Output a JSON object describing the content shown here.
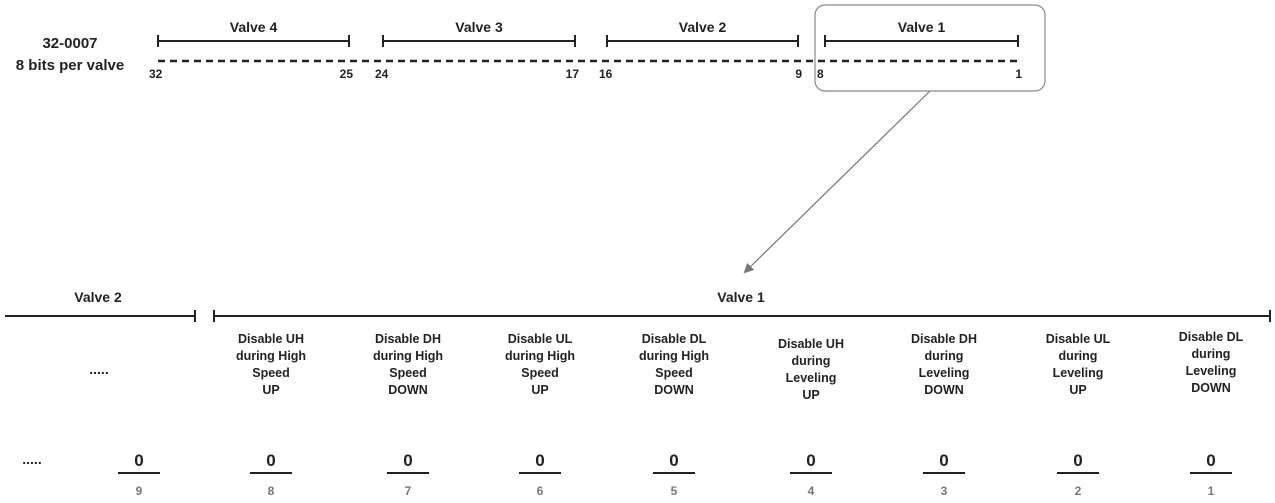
{
  "header": {
    "register_id": "32-0007",
    "bits_note": "8 bits per valve"
  },
  "top_valves": [
    {
      "label": "Valve 4",
      "start_bit": "32",
      "end_bit": "25"
    },
    {
      "label": "Valve 3",
      "start_bit": "24",
      "end_bit": "17"
    },
    {
      "label": "Valve 2",
      "start_bit": "16",
      "end_bit": "9"
    },
    {
      "label": "Valve 1",
      "start_bit": "8",
      "end_bit": "1"
    }
  ],
  "detail": {
    "valve_left_label": "Valve 2",
    "valve_right_label": "Valve 1",
    "ellipsis_desc": ".....",
    "ellipsis_value": ".....",
    "bit9": {
      "value": "0",
      "bit": "9"
    },
    "bits": [
      {
        "lines": [
          "Disable UH",
          "during High",
          "Speed",
          "UP"
        ],
        "value": "0",
        "bit": "8"
      },
      {
        "lines": [
          "Disable DH",
          "during High",
          "Speed",
          "DOWN"
        ],
        "value": "0",
        "bit": "7"
      },
      {
        "lines": [
          "Disable UL",
          "during High",
          "Speed",
          "UP"
        ],
        "value": "0",
        "bit": "6"
      },
      {
        "lines": [
          "Disable DL",
          "during High",
          "Speed",
          "DOWN"
        ],
        "value": "0",
        "bit": "5"
      },
      {
        "lines": [
          "Disable UH",
          "during",
          "Leveling",
          "UP"
        ],
        "value": "0",
        "bit": "4"
      },
      {
        "lines": [
          "Disable DH",
          "during",
          "Leveling",
          "DOWN"
        ],
        "value": "0",
        "bit": "3"
      },
      {
        "lines": [
          "Disable UL",
          "during",
          "Leveling",
          "UP"
        ],
        "value": "0",
        "bit": "2"
      },
      {
        "lines": [
          "Disable DL",
          "during",
          "Leveling",
          "DOWN"
        ],
        "value": "0",
        "bit": "1"
      }
    ]
  }
}
